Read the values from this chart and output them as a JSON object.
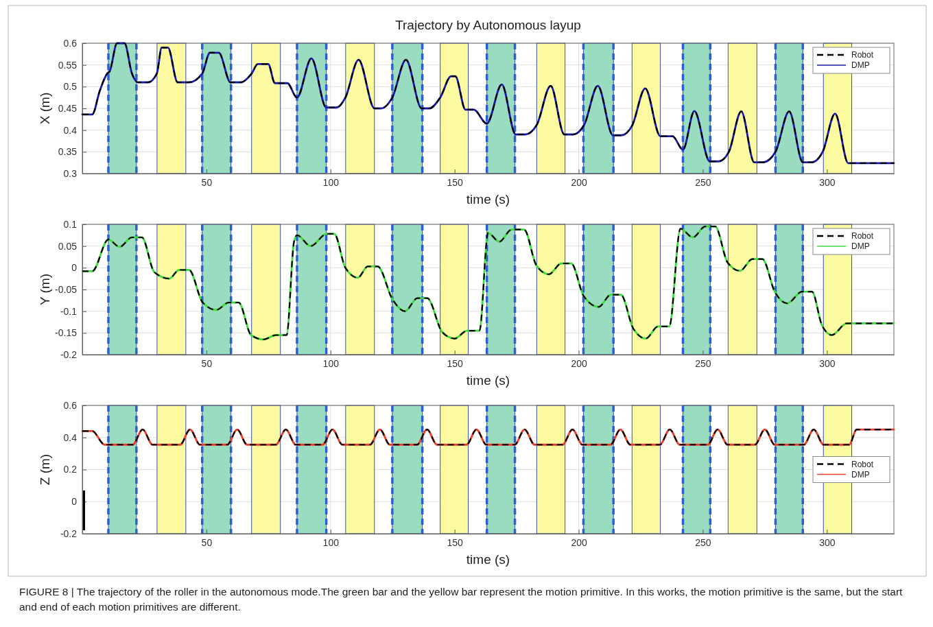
{
  "chart_data": [
    {
      "type": "line",
      "title": "Trajectory by Autonomous layup",
      "xlabel": "time (s)",
      "ylabel": "X (m)",
      "xlim": [
        0,
        327
      ],
      "xticks": [
        50,
        100,
        150,
        200,
        250,
        300
      ],
      "ylim": [
        0.3,
        0.6
      ],
      "yticks": [
        0.3,
        0.35,
        0.4,
        0.45,
        0.5,
        0.55,
        0.6
      ],
      "grid": true,
      "legend": "top right",
      "bands": [
        {
          "axis": "x",
          "from": 10.5,
          "to": 21.8,
          "color": "#99dcbf"
        },
        {
          "axis": "x",
          "from": 30.1,
          "to": 41.7,
          "color": "#fbfaa0"
        },
        {
          "axis": "x",
          "from": 48.3,
          "to": 59.9,
          "color": "#99dcbf"
        },
        {
          "axis": "x",
          "from": 68.2,
          "to": 79.8,
          "color": "#fbfaa0"
        },
        {
          "axis": "x",
          "from": 86.5,
          "to": 98.3,
          "color": "#99dcbf"
        },
        {
          "axis": "x",
          "from": 106.1,
          "to": 117.7,
          "color": "#fbfaa0"
        },
        {
          "axis": "x",
          "from": 124.9,
          "to": 137,
          "color": "#99dcbf"
        },
        {
          "axis": "x",
          "from": 144.2,
          "to": 155.5,
          "color": "#fbfaa0"
        },
        {
          "axis": "x",
          "from": 163,
          "to": 174.3,
          "color": "#99dcbf"
        },
        {
          "axis": "x",
          "from": 183.1,
          "to": 194.5,
          "color": "#fbfaa0"
        },
        {
          "axis": "x",
          "from": 201.9,
          "to": 214,
          "color": "#99dcbf"
        },
        {
          "axis": "x",
          "from": 221.5,
          "to": 232.9,
          "color": "#fbfaa0"
        },
        {
          "axis": "x",
          "from": 242,
          "to": 253,
          "color": "#99dcbf"
        },
        {
          "axis": "x",
          "from": 260.2,
          "to": 271.8,
          "color": "#fbfaa0"
        },
        {
          "axis": "x",
          "from": 279.3,
          "to": 290.3,
          "color": "#99dcbf"
        },
        {
          "axis": "x",
          "from": 298.6,
          "to": 310,
          "color": "#fbfaa0"
        }
      ],
      "ref_lines": [
        {
          "axis": "x",
          "value": 10.5,
          "color": "#2e5fd0",
          "line_style": "dashed"
        },
        {
          "axis": "x",
          "value": 21.8,
          "color": "#2e5fd0",
          "line_style": "dashed"
        },
        {
          "axis": "x",
          "value": 48.3,
          "color": "#2e5fd0",
          "line_style": "dashed"
        },
        {
          "axis": "x",
          "value": 59.9,
          "color": "#2e5fd0",
          "line_style": "dashed"
        },
        {
          "axis": "x",
          "value": 86.5,
          "color": "#2e5fd0",
          "line_style": "dashed"
        },
        {
          "axis": "x",
          "value": 98.3,
          "color": "#2e5fd0",
          "line_style": "dashed"
        },
        {
          "axis": "x",
          "value": 124.9,
          "color": "#2e5fd0",
          "line_style": "dashed"
        },
        {
          "axis": "x",
          "value": 137,
          "color": "#2e5fd0",
          "line_style": "dashed"
        },
        {
          "axis": "x",
          "value": 163,
          "color": "#2e5fd0",
          "line_style": "dashed"
        },
        {
          "axis": "x",
          "value": 174.3,
          "color": "#2e5fd0",
          "line_style": "dashed"
        },
        {
          "axis": "x",
          "value": 201.9,
          "color": "#2e5fd0",
          "line_style": "dashed"
        },
        {
          "axis": "x",
          "value": 214,
          "color": "#2e5fd0",
          "line_style": "dashed"
        },
        {
          "axis": "x",
          "value": 242,
          "color": "#2e5fd0",
          "line_style": "dashed"
        },
        {
          "axis": "x",
          "value": 253,
          "color": "#2e5fd0",
          "line_style": "dashed"
        },
        {
          "axis": "x",
          "value": 279.3,
          "color": "#2e5fd0",
          "line_style": "dashed"
        },
        {
          "axis": "x",
          "value": 290.3,
          "color": "#2e5fd0",
          "line_style": "dashed"
        }
      ],
      "series": [
        {
          "name": "DMP",
          "color": "#1a1aa8",
          "line_style": "solid",
          "x": [
            0,
            4,
            7,
            10,
            11,
            14,
            17,
            20,
            22.4,
            26.5,
            30,
            32,
            34.5,
            38.4,
            43,
            48.3,
            51.4,
            55,
            59.7,
            63.8,
            68.2,
            70.7,
            74.9,
            77.6,
            82.6,
            86.5,
            92.3,
            98.3,
            102.5,
            106,
            111.3,
            117.7,
            120.4,
            124.9,
            130.4,
            136.7,
            139.8,
            144.2,
            148.6,
            150.3,
            154.4,
            157.7,
            163,
            169,
            174.6,
            178.5,
            183.1,
            188.7,
            194.2,
            197.8,
            202.2,
            207.7,
            213.8,
            217.1,
            221.5,
            226.8,
            232.9,
            237.8,
            242,
            246.6,
            252.8,
            256.4,
            260.5,
            265.5,
            270.7,
            274.3,
            279.3,
            284.8,
            290.3,
            293.9,
            298.3,
            303.3,
            308.6,
            327
          ],
          "values": [
            0.436,
            0.436,
            0.49,
            0.53,
            0.535,
            0.6,
            0.6,
            0.53,
            0.51,
            0.51,
            0.53,
            0.59,
            0.59,
            0.51,
            0.51,
            0.53,
            0.578,
            0.578,
            0.51,
            0.51,
            0.53,
            0.552,
            0.552,
            0.508,
            0.508,
            0.475,
            0.565,
            0.452,
            0.452,
            0.475,
            0.562,
            0.45,
            0.45,
            0.475,
            0.562,
            0.45,
            0.45,
            0.475,
            0.524,
            0.524,
            0.447,
            0.447,
            0.415,
            0.505,
            0.39,
            0.39,
            0.412,
            0.502,
            0.39,
            0.39,
            0.412,
            0.502,
            0.388,
            0.388,
            0.41,
            0.496,
            0.386,
            0.386,
            0.355,
            0.444,
            0.328,
            0.328,
            0.35,
            0.443,
            0.326,
            0.326,
            0.35,
            0.443,
            0.326,
            0.326,
            0.35,
            0.438,
            0.324,
            0.324
          ]
        },
        {
          "name": "Robot",
          "color": "#000000",
          "line_style": "dashed",
          "x": [
            0,
            4,
            7,
            10,
            11,
            14,
            17,
            20,
            22.4,
            26.5,
            30,
            32,
            34.5,
            38.4,
            43,
            48.3,
            51.4,
            55,
            59.7,
            63.8,
            68.2,
            70.7,
            74.9,
            77.6,
            82.6,
            86.5,
            92.3,
            98.3,
            102.5,
            106,
            111.3,
            117.7,
            120.4,
            124.9,
            130.4,
            136.7,
            139.8,
            144.2,
            148.6,
            150.3,
            154.4,
            157.7,
            163,
            169,
            174.6,
            178.5,
            183.1,
            188.7,
            194.2,
            197.8,
            202.2,
            207.7,
            213.8,
            217.1,
            221.5,
            226.8,
            232.9,
            237.8,
            242,
            246.6,
            252.8,
            256.4,
            260.5,
            265.5,
            270.7,
            274.3,
            279.3,
            284.8,
            290.3,
            293.9,
            298.3,
            303.3,
            308.6,
            327
          ],
          "values": [
            0.436,
            0.436,
            0.49,
            0.53,
            0.535,
            0.6,
            0.6,
            0.53,
            0.51,
            0.51,
            0.53,
            0.59,
            0.59,
            0.51,
            0.51,
            0.53,
            0.578,
            0.578,
            0.51,
            0.51,
            0.53,
            0.552,
            0.552,
            0.508,
            0.508,
            0.475,
            0.565,
            0.452,
            0.452,
            0.475,
            0.562,
            0.45,
            0.45,
            0.475,
            0.562,
            0.45,
            0.45,
            0.475,
            0.524,
            0.524,
            0.447,
            0.447,
            0.415,
            0.505,
            0.39,
            0.39,
            0.412,
            0.502,
            0.39,
            0.39,
            0.412,
            0.502,
            0.388,
            0.388,
            0.41,
            0.496,
            0.386,
            0.386,
            0.355,
            0.444,
            0.328,
            0.328,
            0.35,
            0.443,
            0.326,
            0.326,
            0.35,
            0.443,
            0.326,
            0.326,
            0.35,
            0.438,
            0.324,
            0.324
          ]
        }
      ]
    },
    {
      "type": "line",
      "xlabel": "time (s)",
      "ylabel": "Y (m)",
      "xlim": [
        0,
        327
      ],
      "xticks": [
        50,
        100,
        150,
        200,
        250,
        300
      ],
      "ylim": [
        -0.2,
        0.1
      ],
      "yticks": [
        -0.2,
        -0.15,
        -0.1,
        -0.05,
        0,
        0.05,
        0.1
      ],
      "grid": true,
      "legend": "top right",
      "bands": [
        {
          "axis": "x",
          "from": 10.5,
          "to": 21.8,
          "color": "#99dcbf"
        },
        {
          "axis": "x",
          "from": 30.1,
          "to": 41.7,
          "color": "#fbfaa0"
        },
        {
          "axis": "x",
          "from": 48.3,
          "to": 59.9,
          "color": "#99dcbf"
        },
        {
          "axis": "x",
          "from": 68.2,
          "to": 79.8,
          "color": "#fbfaa0"
        },
        {
          "axis": "x",
          "from": 86.5,
          "to": 98.3,
          "color": "#99dcbf"
        },
        {
          "axis": "x",
          "from": 106.1,
          "to": 117.7,
          "color": "#fbfaa0"
        },
        {
          "axis": "x",
          "from": 124.9,
          "to": 137,
          "color": "#99dcbf"
        },
        {
          "axis": "x",
          "from": 144.2,
          "to": 155.5,
          "color": "#fbfaa0"
        },
        {
          "axis": "x",
          "from": 163,
          "to": 174.3,
          "color": "#99dcbf"
        },
        {
          "axis": "x",
          "from": 183.1,
          "to": 194.5,
          "color": "#fbfaa0"
        },
        {
          "axis": "x",
          "from": 201.9,
          "to": 214,
          "color": "#99dcbf"
        },
        {
          "axis": "x",
          "from": 221.5,
          "to": 232.9,
          "color": "#fbfaa0"
        },
        {
          "axis": "x",
          "from": 242,
          "to": 253,
          "color": "#99dcbf"
        },
        {
          "axis": "x",
          "from": 260.2,
          "to": 271.8,
          "color": "#fbfaa0"
        },
        {
          "axis": "x",
          "from": 279.3,
          "to": 290.3,
          "color": "#99dcbf"
        },
        {
          "axis": "x",
          "from": 298.6,
          "to": 310,
          "color": "#fbfaa0"
        }
      ],
      "ref_lines": [
        {
          "axis": "x",
          "value": 10.5,
          "color": "#2e5fd0",
          "line_style": "dashed"
        },
        {
          "axis": "x",
          "value": 21.8,
          "color": "#2e5fd0",
          "line_style": "dashed"
        },
        {
          "axis": "x",
          "value": 48.3,
          "color": "#2e5fd0",
          "line_style": "dashed"
        },
        {
          "axis": "x",
          "value": 59.9,
          "color": "#2e5fd0",
          "line_style": "dashed"
        },
        {
          "axis": "x",
          "value": 86.5,
          "color": "#2e5fd0",
          "line_style": "dashed"
        },
        {
          "axis": "x",
          "value": 98.3,
          "color": "#2e5fd0",
          "line_style": "dashed"
        },
        {
          "axis": "x",
          "value": 124.9,
          "color": "#2e5fd0",
          "line_style": "dashed"
        },
        {
          "axis": "x",
          "value": 137,
          "color": "#2e5fd0",
          "line_style": "dashed"
        },
        {
          "axis": "x",
          "value": 163,
          "color": "#2e5fd0",
          "line_style": "dashed"
        },
        {
          "axis": "x",
          "value": 174.3,
          "color": "#2e5fd0",
          "line_style": "dashed"
        },
        {
          "axis": "x",
          "value": 201.9,
          "color": "#2e5fd0",
          "line_style": "dashed"
        },
        {
          "axis": "x",
          "value": 214,
          "color": "#2e5fd0",
          "line_style": "dashed"
        },
        {
          "axis": "x",
          "value": 242,
          "color": "#2e5fd0",
          "line_style": "dashed"
        },
        {
          "axis": "x",
          "value": 253,
          "color": "#2e5fd0",
          "line_style": "dashed"
        },
        {
          "axis": "x",
          "value": 279.3,
          "color": "#2e5fd0",
          "line_style": "dashed"
        },
        {
          "axis": "x",
          "value": 290.3,
          "color": "#2e5fd0",
          "line_style": "dashed"
        }
      ],
      "series": [
        {
          "name": "DMP",
          "color": "#3ddc3d",
          "line_style": "solid",
          "x": [
            0,
            4,
            10.5,
            15,
            20,
            24,
            29,
            35,
            39,
            43,
            48.5,
            54,
            59,
            63,
            68,
            73,
            78,
            82.3,
            85.3,
            86.5,
            92,
            98.5,
            101.5,
            106,
            111,
            115,
            119,
            125,
            130,
            135,
            139,
            145,
            150,
            155,
            160,
            163.5,
            168,
            173,
            178,
            183,
            188,
            193,
            197,
            202,
            208,
            213,
            217,
            222,
            227,
            232,
            236.5,
            241,
            246,
            251,
            255,
            260,
            265,
            270,
            274,
            279,
            284,
            290,
            294,
            298,
            302,
            308,
            327
          ],
          "values": [
            -0.008,
            -0.008,
            0.065,
            0.048,
            0.07,
            0.07,
            -0.01,
            -0.025,
            -0.005,
            -0.005,
            -0.08,
            -0.097,
            -0.08,
            -0.08,
            -0.155,
            -0.165,
            -0.155,
            -0.155,
            0.06,
            0.075,
            0.05,
            0.078,
            0.078,
            0,
            -0.023,
            0.003,
            0.003,
            -0.073,
            -0.1,
            -0.07,
            -0.07,
            -0.148,
            -0.163,
            -0.145,
            -0.145,
            0.08,
            0.06,
            0.088,
            0.088,
            0.005,
            -0.015,
            0.01,
            0.01,
            -0.065,
            -0.09,
            -0.062,
            -0.062,
            -0.14,
            -0.163,
            -0.135,
            -0.135,
            0.09,
            0.07,
            0.095,
            0.095,
            0.012,
            -0.007,
            0.02,
            0.02,
            -0.055,
            -0.082,
            -0.055,
            -0.055,
            -0.132,
            -0.155,
            -0.128,
            -0.128
          ]
        },
        {
          "name": "Robot",
          "color": "#000000",
          "line_style": "dashed",
          "x": [
            0,
            4,
            10.5,
            15,
            20,
            24,
            29,
            35,
            39,
            43,
            48.5,
            54,
            59,
            63,
            68,
            73,
            78,
            82.3,
            85.3,
            86.5,
            92,
            98.5,
            101.5,
            106,
            111,
            115,
            119,
            125,
            130,
            135,
            139,
            145,
            150,
            155,
            160,
            163.5,
            168,
            173,
            178,
            183,
            188,
            193,
            197,
            202,
            208,
            213,
            217,
            222,
            227,
            232,
            236.5,
            241,
            246,
            251,
            255,
            260,
            265,
            270,
            274,
            279,
            284,
            290,
            294,
            298,
            302,
            308,
            327
          ],
          "values": [
            -0.008,
            -0.008,
            0.065,
            0.048,
            0.07,
            0.07,
            -0.01,
            -0.025,
            -0.005,
            -0.005,
            -0.08,
            -0.097,
            -0.08,
            -0.08,
            -0.155,
            -0.165,
            -0.155,
            -0.155,
            0.06,
            0.075,
            0.05,
            0.078,
            0.078,
            0,
            -0.023,
            0.003,
            0.003,
            -0.073,
            -0.1,
            -0.07,
            -0.07,
            -0.148,
            -0.163,
            -0.145,
            -0.145,
            0.08,
            0.06,
            0.088,
            0.088,
            0.005,
            -0.015,
            0.01,
            0.01,
            -0.065,
            -0.09,
            -0.062,
            -0.062,
            -0.14,
            -0.163,
            -0.135,
            -0.135,
            0.09,
            0.07,
            0.095,
            0.095,
            0.012,
            -0.007,
            0.02,
            0.02,
            -0.055,
            -0.082,
            -0.055,
            -0.055,
            -0.132,
            -0.155,
            -0.128,
            -0.128
          ]
        }
      ]
    },
    {
      "type": "line",
      "xlabel": "time (s)",
      "ylabel": "Z (m)",
      "xlim": [
        0,
        327
      ],
      "xticks": [
        50,
        100,
        150,
        200,
        250,
        300
      ],
      "ylim": [
        -0.2,
        0.6
      ],
      "yticks": [
        -0.2,
        0,
        0.2,
        0.4,
        0.6
      ],
      "grid": true,
      "legend": "right",
      "annotations": [
        "FIGURE 8 | The trajectory of the roller in the autonomous mode.The green bar and the yellow bar represent the motion primitive. In this works, the motion primitive is the same, but the start and end of each motion primitives are different."
      ],
      "bands": [
        {
          "axis": "x",
          "from": 10.5,
          "to": 21.8,
          "color": "#99dcbf"
        },
        {
          "axis": "x",
          "from": 30.1,
          "to": 41.7,
          "color": "#fbfaa0"
        },
        {
          "axis": "x",
          "from": 48.3,
          "to": 59.9,
          "color": "#99dcbf"
        },
        {
          "axis": "x",
          "from": 68.2,
          "to": 79.8,
          "color": "#fbfaa0"
        },
        {
          "axis": "x",
          "from": 86.5,
          "to": 98.3,
          "color": "#99dcbf"
        },
        {
          "axis": "x",
          "from": 106.1,
          "to": 117.7,
          "color": "#fbfaa0"
        },
        {
          "axis": "x",
          "from": 124.9,
          "to": 137,
          "color": "#99dcbf"
        },
        {
          "axis": "x",
          "from": 144.2,
          "to": 155.5,
          "color": "#fbfaa0"
        },
        {
          "axis": "x",
          "from": 163,
          "to": 174.3,
          "color": "#99dcbf"
        },
        {
          "axis": "x",
          "from": 183.1,
          "to": 194.5,
          "color": "#fbfaa0"
        },
        {
          "axis": "x",
          "from": 201.9,
          "to": 214,
          "color": "#99dcbf"
        },
        {
          "axis": "x",
          "from": 221.5,
          "to": 232.9,
          "color": "#fbfaa0"
        },
        {
          "axis": "x",
          "from": 242,
          "to": 253,
          "color": "#99dcbf"
        },
        {
          "axis": "x",
          "from": 260.2,
          "to": 271.8,
          "color": "#fbfaa0"
        },
        {
          "axis": "x",
          "from": 279.3,
          "to": 290.3,
          "color": "#99dcbf"
        },
        {
          "axis": "x",
          "from": 298.6,
          "to": 310,
          "color": "#fbfaa0"
        }
      ],
      "ref_lines": [
        {
          "axis": "x",
          "value": 10.5,
          "color": "#2e5fd0",
          "line_style": "dashed"
        },
        {
          "axis": "x",
          "value": 21.8,
          "color": "#2e5fd0",
          "line_style": "dashed"
        },
        {
          "axis": "x",
          "value": 48.3,
          "color": "#2e5fd0",
          "line_style": "dashed"
        },
        {
          "axis": "x",
          "value": 59.9,
          "color": "#2e5fd0",
          "line_style": "dashed"
        },
        {
          "axis": "x",
          "value": 86.5,
          "color": "#2e5fd0",
          "line_style": "dashed"
        },
        {
          "axis": "x",
          "value": 98.3,
          "color": "#2e5fd0",
          "line_style": "dashed"
        },
        {
          "axis": "x",
          "value": 124.9,
          "color": "#2e5fd0",
          "line_style": "dashed"
        },
        {
          "axis": "x",
          "value": 137,
          "color": "#2e5fd0",
          "line_style": "dashed"
        },
        {
          "axis": "x",
          "value": 163,
          "color": "#2e5fd0",
          "line_style": "dashed"
        },
        {
          "axis": "x",
          "value": 174.3,
          "color": "#2e5fd0",
          "line_style": "dashed"
        },
        {
          "axis": "x",
          "value": 201.9,
          "color": "#2e5fd0",
          "line_style": "dashed"
        },
        {
          "axis": "x",
          "value": 214,
          "color": "#2e5fd0",
          "line_style": "dashed"
        },
        {
          "axis": "x",
          "value": 242,
          "color": "#2e5fd0",
          "line_style": "dashed"
        },
        {
          "axis": "x",
          "value": 253,
          "color": "#2e5fd0",
          "line_style": "dashed"
        },
        {
          "axis": "x",
          "value": 279.3,
          "color": "#2e5fd0",
          "line_style": "dashed"
        },
        {
          "axis": "x",
          "value": 290.3,
          "color": "#2e5fd0",
          "line_style": "dashed"
        }
      ],
      "series": [
        {
          "name": "DMP",
          "color": "#e8402a",
          "line_style": "solid",
          "x": [
            0,
            4,
            9,
            20.3,
            24.3,
            28.3,
            39.4,
            43.4,
            47.4,
            58.4,
            62.4,
            66.4,
            78,
            82,
            86,
            96.8,
            100.8,
            104.8,
            115.9,
            119.9,
            123.9,
            134.9,
            138.9,
            142.9,
            154.8,
            158.8,
            162.8,
            174.2,
            178.2,
            182.2,
            193.5,
            197.5,
            201.5,
            212.8,
            216.8,
            220.8,
            232.7,
            236.7,
            240.7,
            252,
            256,
            260,
            271,
            275,
            279,
            290.7,
            294.7,
            298.7,
            309,
            312,
            327
          ],
          "values": [
            0.44,
            0.44,
            0.355,
            0.355,
            0.45,
            0.355,
            0.355,
            0.45,
            0.355,
            0.355,
            0.45,
            0.355,
            0.355,
            0.45,
            0.355,
            0.355,
            0.45,
            0.355,
            0.355,
            0.45,
            0.355,
            0.355,
            0.45,
            0.355,
            0.355,
            0.45,
            0.355,
            0.355,
            0.45,
            0.355,
            0.355,
            0.45,
            0.355,
            0.355,
            0.45,
            0.355,
            0.355,
            0.45,
            0.355,
            0.355,
            0.45,
            0.355,
            0.355,
            0.45,
            0.355,
            0.355,
            0.45,
            0.355,
            0.355,
            0.45,
            0.45
          ]
        },
        {
          "name": "Robot",
          "color": "#000000",
          "line_style": "dashed",
          "x": [
            0,
            4,
            9,
            20.3,
            24.3,
            28.3,
            39.4,
            43.4,
            47.4,
            58.4,
            62.4,
            66.4,
            78,
            82,
            86,
            96.8,
            100.8,
            104.8,
            115.9,
            119.9,
            123.9,
            134.9,
            138.9,
            142.9,
            154.8,
            158.8,
            162.8,
            174.2,
            178.2,
            182.2,
            193.5,
            197.5,
            201.5,
            212.8,
            216.8,
            220.8,
            232.7,
            236.7,
            240.7,
            252,
            256,
            260,
            271,
            275,
            279,
            290.7,
            294.7,
            298.7,
            309,
            312,
            327
          ],
          "values": [
            0.44,
            0.44,
            0.355,
            0.355,
            0.45,
            0.355,
            0.355,
            0.45,
            0.355,
            0.355,
            0.45,
            0.355,
            0.355,
            0.45,
            0.355,
            0.355,
            0.45,
            0.355,
            0.355,
            0.45,
            0.355,
            0.355,
            0.45,
            0.355,
            0.355,
            0.45,
            0.355,
            0.355,
            0.45,
            0.355,
            0.355,
            0.45,
            0.355,
            0.355,
            0.45,
            0.355,
            0.355,
            0.45,
            0.355,
            0.355,
            0.45,
            0.355,
            0.355,
            0.45,
            0.355,
            0.355,
            0.45,
            0.355,
            0.355,
            0.45,
            0.45
          ]
        }
      ]
    }
  ]
}
